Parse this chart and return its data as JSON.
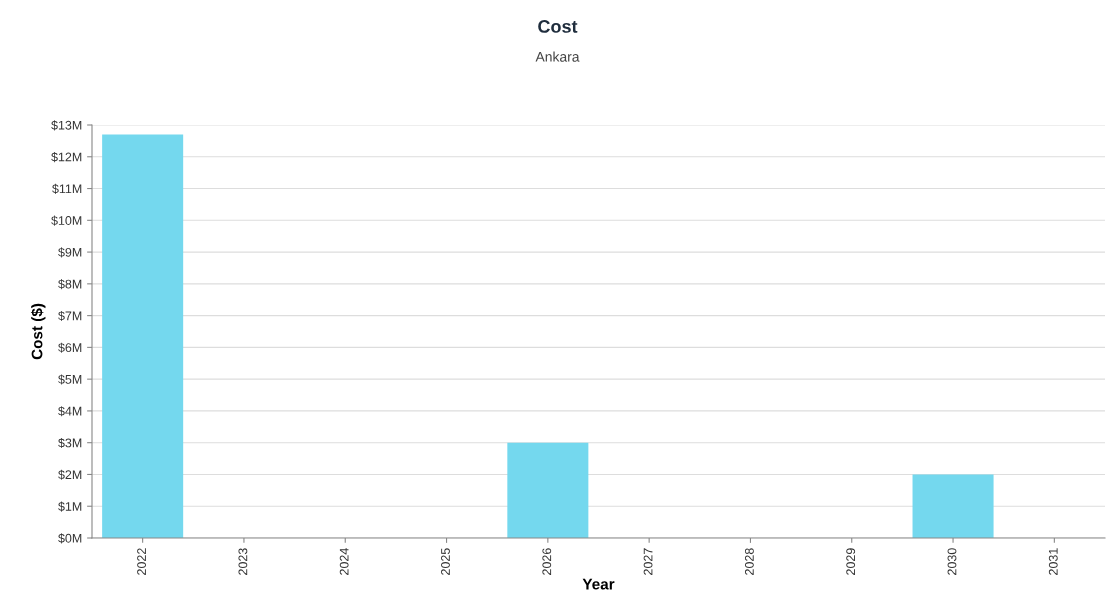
{
  "chart_data": {
    "type": "bar",
    "title": "Cost",
    "subtitle": "Ankara",
    "xlabel": "Year",
    "ylabel": "Cost ($)",
    "categories": [
      "2022",
      "2023",
      "2024",
      "2025",
      "2026",
      "2027",
      "2028",
      "2029",
      "2030",
      "2031"
    ],
    "values": [
      12700000,
      0,
      0,
      0,
      3000000,
      0,
      0,
      0,
      2000000,
      0
    ],
    "color": "#74d8ee",
    "ylim": [
      0,
      13000000
    ],
    "yticks": [
      {
        "value": 0,
        "label": "$0M"
      },
      {
        "value": 1000000,
        "label": "$1M"
      },
      {
        "value": 2000000,
        "label": "$2M"
      },
      {
        "value": 3000000,
        "label": "$3M"
      },
      {
        "value": 4000000,
        "label": "$4M"
      },
      {
        "value": 5000000,
        "label": "$5M"
      },
      {
        "value": 6000000,
        "label": "$6M"
      },
      {
        "value": 7000000,
        "label": "$7M"
      },
      {
        "value": 8000000,
        "label": "$8M"
      },
      {
        "value": 9000000,
        "label": "$9M"
      },
      {
        "value": 10000000,
        "label": "$10M"
      },
      {
        "value": 11000000,
        "label": "$11M"
      },
      {
        "value": 12000000,
        "label": "$12M"
      },
      {
        "value": 13000000,
        "label": "$13M"
      }
    ],
    "grid": "y"
  }
}
